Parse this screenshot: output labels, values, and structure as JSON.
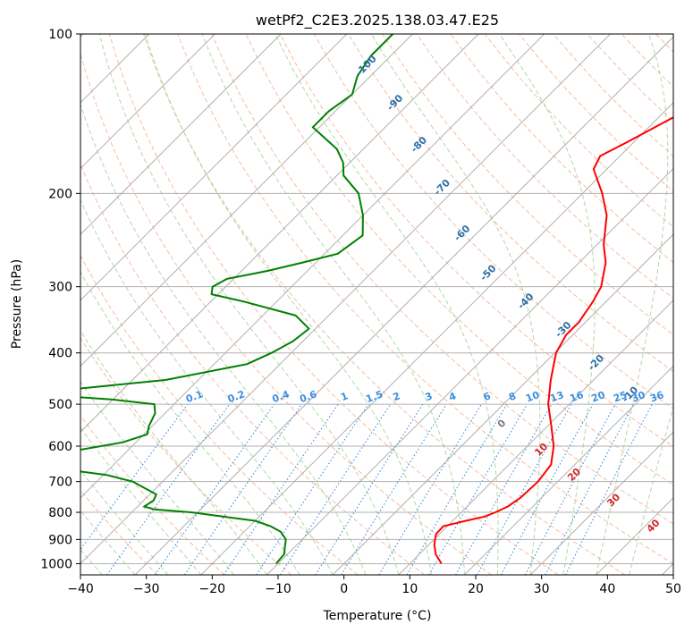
{
  "chart_data": {
    "type": "line",
    "subtype": "skew-t log-p diagram",
    "title": "wetPf2_C2E3.2025.138.03.47.E25",
    "xlabel": "Temperature (°C)",
    "ylabel": "Pressure (hPa)",
    "xlim": [
      -40,
      50
    ],
    "ylim": [
      1050,
      100
    ],
    "y_scale": "log",
    "x_ticks": [
      "−40",
      "−30",
      "−20",
      "−10",
      "0",
      "10",
      "20",
      "30",
      "40",
      "50"
    ],
    "y_ticks": [
      "100",
      "200",
      "300",
      "400",
      "500",
      "600",
      "700",
      "800",
      "900",
      "1000"
    ],
    "grid": true,
    "series": [
      {
        "color": "#ff0000",
        "p": [
          1000,
          960,
          920,
          880,
          850,
          830,
          815,
          800,
          780,
          750,
          700,
          650,
          600,
          550,
          500,
          450,
          400,
          370,
          350,
          320,
          300,
          270,
          250,
          220,
          200,
          180,
          170,
          160,
          140,
          120,
          100
        ],
        "t": [
          14.8,
          12.5,
          10.8,
          9.5,
          9.4,
          12.0,
          14.2,
          15.2,
          16.2,
          16.8,
          17.0,
          16.4,
          14.0,
          10.6,
          6.8,
          3.5,
          0.2,
          -1.0,
          -1.0,
          -2.0,
          -3.0,
          -6.0,
          -9.0,
          -13.0,
          -17.0,
          -22.0,
          -23.0,
          -21.0,
          -17.0,
          -17.0,
          -12.0
        ]
      },
      {
        "color": "#008000",
        "p": [
          1000,
          960,
          930,
          900,
          870,
          850,
          830,
          800,
          790,
          780,
          760,
          740,
          700,
          680,
          660,
          640,
          630,
          610,
          590,
          570,
          550,
          520,
          500,
          490,
          480,
          475,
          450,
          420,
          400,
          380,
          360,
          340,
          320,
          310,
          300,
          290,
          280,
          270,
          260,
          240,
          220,
          200,
          185,
          175,
          165,
          150,
          140,
          130,
          120,
          110,
          100
        ],
        "t": [
          -10.3,
          -10.5,
          -11.5,
          -12.5,
          -14.5,
          -16.8,
          -20.0,
          -31.0,
          -37.0,
          -39.0,
          -38.5,
          -39.0,
          -44.5,
          -49.5,
          -58.5,
          -63.5,
          -64.0,
          -57.5,
          -52.0,
          -49.5,
          -50.5,
          -51.5,
          -53.0,
          -60.0,
          -71.0,
          -72.0,
          -55.0,
          -45.0,
          -43.0,
          -41.5,
          -41.0,
          -45.0,
          -55.0,
          -61.0,
          -62.0,
          -61.0,
          -56.0,
          -52.0,
          -48.0,
          -47.0,
          -50.0,
          -54.0,
          -59.0,
          -61.0,
          -64.0,
          -71.0,
          -71.0,
          -70.0,
          -72.0,
          -73.0,
          -73.0
        ]
      }
    ],
    "dry_adiabat_labels": [
      "-100",
      "-90",
      "-80",
      "-70",
      "-60",
      "-50",
      "-40",
      "-30",
      "-20",
      "-10"
    ],
    "moist_adiabat_labels": [
      "0",
      "10",
      "20",
      "30",
      "40"
    ],
    "mixing_ratio_labels": [
      "0.1",
      "0.2",
      "0.4",
      "0.6",
      "1",
      "1.5",
      "2",
      "3",
      "4",
      "6",
      "8",
      "10",
      "13",
      "16",
      "20",
      "25",
      "30",
      "36"
    ]
  },
  "colors": {
    "temperature": "#ff0000",
    "dewpoint": "#008000",
    "isotherm": "#b0b0b0",
    "isobar": "#b0b0b0",
    "dry_adiabat": "#f4a582",
    "moist_adiabat": "#a6d096",
    "mixing_ratio": "#3a8ee0",
    "dry_label": "#2c6fa6",
    "moist_label": "#d62728",
    "mix_label": "#3a8ee0"
  }
}
